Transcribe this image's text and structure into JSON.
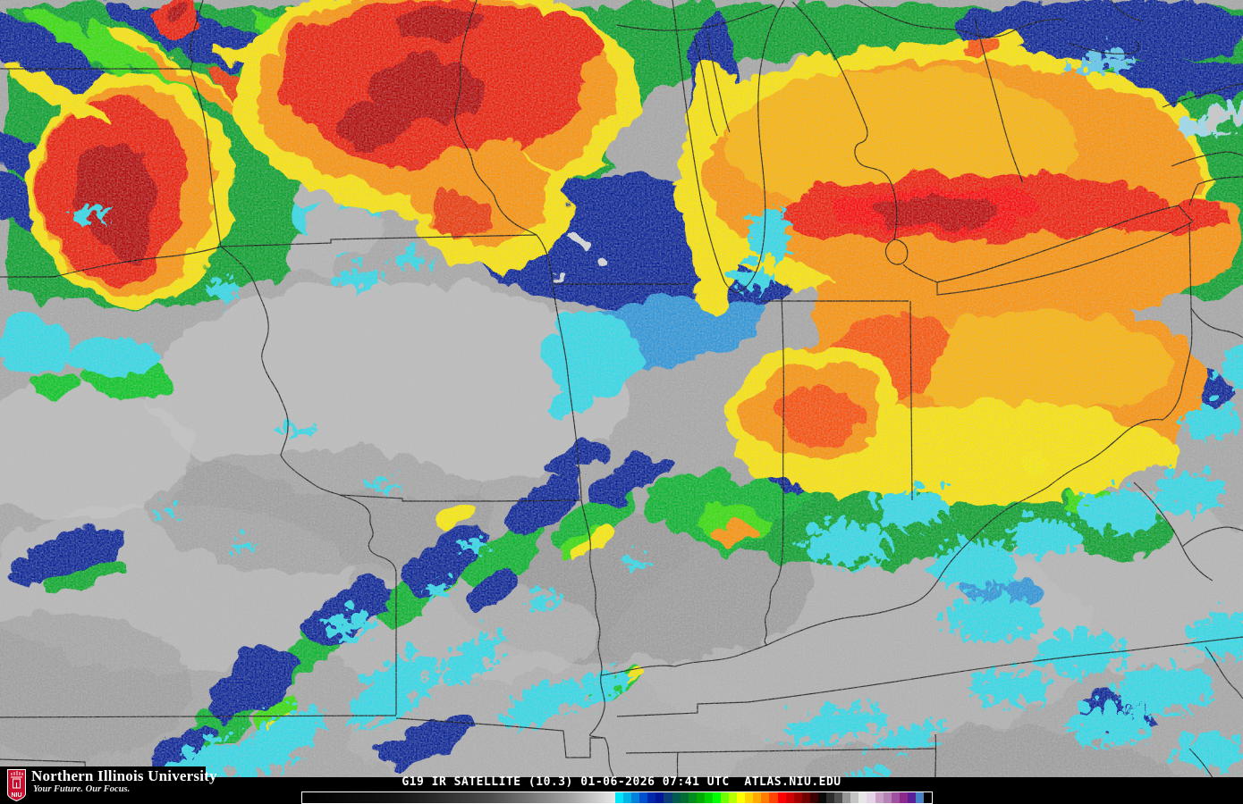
{
  "branding": {
    "logo_acronym": "NIU",
    "university_name": "Northern Illinois University",
    "tagline": "Your Future. Our Focus.",
    "logo_red": "#c8102e"
  },
  "caption": {
    "text": "G19 IR SATELLITE (10.3) 01-06-2026 07:41 UTC  ATLAS.NIU.EDU",
    "satellite": "G19",
    "product": "IR SATELLITE",
    "band": "10.3",
    "date": "01-06-2026",
    "time": "07:41 UTC",
    "source": "ATLAS.NIU.EDU"
  },
  "colorbar": {
    "grayscale_stops": [
      "#000000",
      "#141414 30%",
      "#4b4b4b 60%",
      "#a0a0a0 85%",
      "#e8e8e8"
    ],
    "segments": [
      "#00e6f6",
      "#00b4e6",
      "#0082dc",
      "#0050cd",
      "#0028aa",
      "#001496",
      "#0a3c78",
      "#005a50",
      "#006e32",
      "#008c1e",
      "#00aa00",
      "#00d200",
      "#00ff00",
      "#6eff00",
      "#b9ff00",
      "#ffff00",
      "#ffd200",
      "#ffaa00",
      "#ff7d00",
      "#ff4600",
      "#ff0000",
      "#d20000",
      "#a00000",
      "#6e0000",
      "#3c0000",
      "#0a0a0a",
      "#2d2d2d",
      "#505050",
      "#969696",
      "#c3c3c3",
      "#e6e6e6",
      "#e6d2e6",
      "#c8a0c8",
      "#b482b4",
      "#a050a0",
      "#8c288c",
      "#5a1e96",
      "#4682c8",
      "#000000"
    ]
  },
  "map": {
    "type": "ir-satellite-enhanced",
    "palette": {
      "warm_cloud_gray": "#a6a6a6",
      "cyan": "#2cdcec",
      "mid_blue": "#2894dc",
      "navy": "#001c96",
      "green": "#00a028",
      "bright_green": "#2ee000",
      "yellow": "#ffe800",
      "orange": "#ff9100",
      "red": "#f01400",
      "dark_red": "#b40000",
      "state_border": "#000000"
    }
  }
}
